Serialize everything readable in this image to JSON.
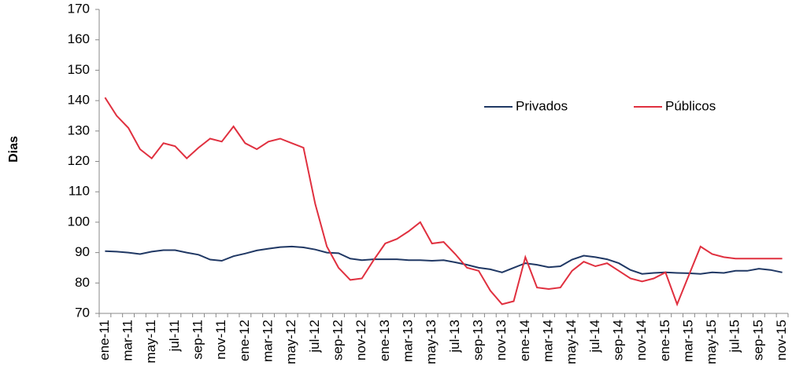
{
  "chart_data": {
    "type": "line",
    "y_label": "Dias",
    "categories": [
      "ene-11",
      null,
      "mar-11",
      null,
      "may-11",
      null,
      "jul-11",
      null,
      "sep-11",
      null,
      "nov-11",
      null,
      "ene-12",
      null,
      "mar-12",
      null,
      "may-12",
      null,
      "jul-12",
      null,
      "sep-12",
      null,
      "nov-12",
      null,
      "ene-13",
      null,
      "mar-13",
      null,
      "may-13",
      null,
      "jul-13",
      null,
      "sep-13",
      null,
      "nov-13",
      null,
      "ene-14",
      null,
      "mar-14",
      null,
      "may-14",
      null,
      "jul-14",
      null,
      "sep-14",
      null,
      "nov-14",
      null,
      "ene-15",
      null,
      "mar-15",
      null,
      "may-15",
      null,
      "jul-15",
      null,
      "sep-15",
      null,
      "nov-15"
    ],
    "series": [
      {
        "name": "Privados",
        "color": "#203864",
        "values": [
          90.5,
          90.3,
          90,
          89.5,
          90.3,
          90.8,
          90.8,
          90,
          89.3,
          87.7,
          87.3,
          88.8,
          89.7,
          90.7,
          91.3,
          91.8,
          92,
          91.7,
          91,
          90,
          89.8,
          88,
          87.5,
          87.8,
          87.8,
          87.8,
          87.5,
          87.5,
          87.3,
          87.5,
          86.8,
          86,
          85,
          84.5,
          83.5,
          85,
          86.5,
          86,
          85.2,
          85.5,
          87.7,
          89,
          88.5,
          87.8,
          86.5,
          84.3,
          83,
          83.3,
          83.5,
          83.3,
          83.2,
          83,
          83.5,
          83.3,
          84,
          84,
          84.7,
          84.3,
          83.5
        ]
      },
      {
        "name": "Públicos",
        "color": "#e0303f",
        "values": [
          141,
          135,
          131,
          124,
          121,
          126,
          125,
          121,
          124.5,
          127.5,
          126.5,
          131.5,
          126,
          124,
          126.5,
          127.5,
          126,
          124.5,
          106,
          92,
          85,
          81,
          81.5,
          87.5,
          93,
          94.5,
          97,
          100,
          93,
          93.5,
          89.5,
          85,
          84,
          77.5,
          73,
          74,
          88.5,
          78.5,
          78,
          78.5,
          84,
          87,
          85.5,
          86.5,
          84,
          81.5,
          80.5,
          81.5,
          83.5,
          73,
          82.5,
          92,
          89.5,
          88.5,
          88,
          88,
          88,
          88,
          88
        ]
      }
    ],
    "ylim": [
      70,
      170
    ],
    "yticks": [
      70,
      80,
      90,
      100,
      110,
      120,
      130,
      140,
      150,
      160,
      170
    ],
    "grid": false
  }
}
